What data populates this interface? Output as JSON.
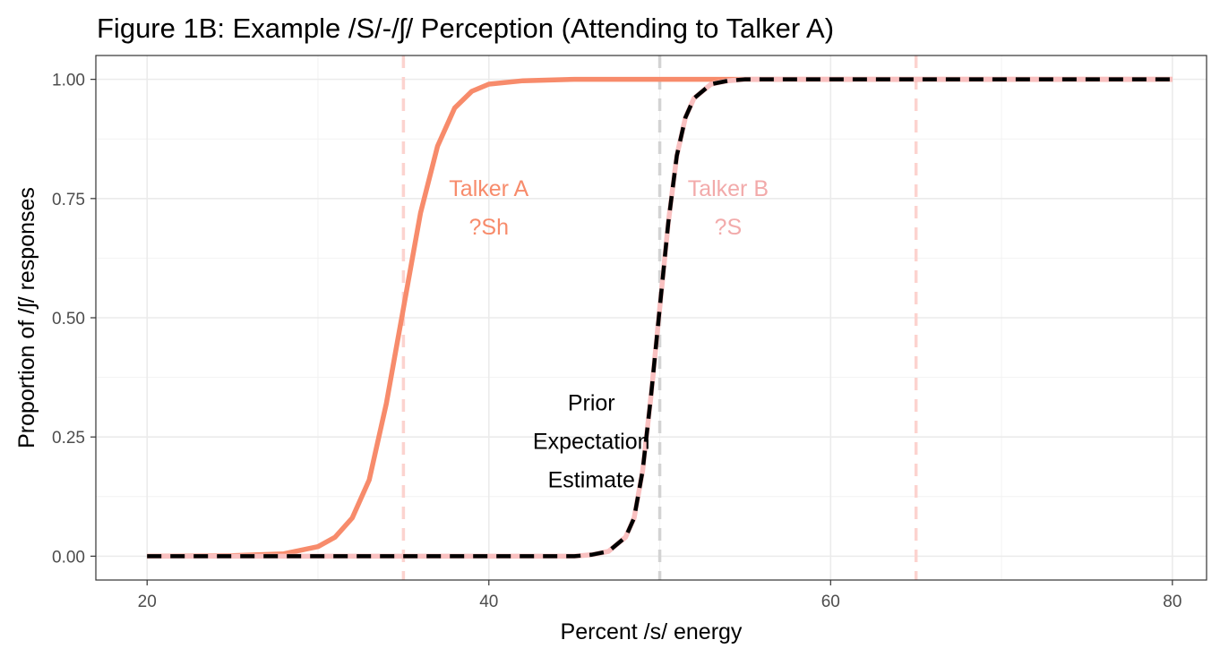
{
  "chart_data": {
    "type": "line",
    "title": "Figure 1B: Example /S/-/ʃ/ Perception (Attending to Talker A)",
    "xlabel": "Percent /s/ energy",
    "ylabel": "Proportion of /ʃ/ responses",
    "xlim": [
      17,
      82
    ],
    "ylim": [
      -0.05,
      1.05
    ],
    "x_ticks": [
      20,
      40,
      60,
      80
    ],
    "x_tick_labels": [
      "20",
      "40",
      "60",
      "80"
    ],
    "y_ticks": [
      0,
      0.25,
      0.5,
      0.75,
      1.0
    ],
    "y_tick_labels": [
      "0.00",
      "0.25",
      "0.50",
      "0.75",
      "1.00"
    ],
    "grid": true,
    "legend": "none",
    "series": [
      {
        "color": "#f78b6b",
        "style": "solid",
        "x": [
          20,
          25,
          28,
          30,
          31,
          32,
          33,
          34,
          34.5,
          35,
          35.5,
          36,
          37,
          38,
          39,
          40,
          42,
          45,
          50,
          55,
          60,
          65,
          70,
          75,
          80
        ],
        "y": [
          0.0,
          0.001,
          0.005,
          0.02,
          0.04,
          0.08,
          0.16,
          0.32,
          0.42,
          0.52,
          0.62,
          0.72,
          0.86,
          0.94,
          0.975,
          0.99,
          0.997,
          1.0,
          1.0,
          1.0,
          1.0,
          1.0,
          1.0,
          1.0,
          1.0
        ]
      },
      {
        "color": "#f9c0c0",
        "style": "solid",
        "x": [
          20,
          30,
          40,
          45,
          46,
          47,
          48,
          48.5,
          49,
          49.5,
          50,
          50.5,
          51,
          51.5,
          52,
          53,
          54,
          55,
          60,
          70,
          80
        ],
        "y": [
          0.0,
          0.0,
          0.0,
          0.0,
          0.003,
          0.01,
          0.04,
          0.08,
          0.18,
          0.34,
          0.52,
          0.7,
          0.84,
          0.92,
          0.96,
          0.99,
          0.997,
          1.0,
          1.0,
          1.0,
          1.0
        ]
      },
      {
        "color": "#000000",
        "style": "dashed",
        "x": [
          20,
          30,
          40,
          45,
          46,
          47,
          48,
          48.5,
          49,
          49.5,
          50,
          50.5,
          51,
          51.5,
          52,
          53,
          54,
          55,
          60,
          70,
          80
        ],
        "y": [
          0.0,
          0.0,
          0.0,
          0.0,
          0.003,
          0.01,
          0.04,
          0.08,
          0.18,
          0.34,
          0.52,
          0.7,
          0.84,
          0.92,
          0.96,
          0.99,
          0.997,
          1.0,
          1.0,
          1.0,
          1.0
        ]
      }
    ],
    "vlines": [
      {
        "x": 35,
        "color": "#fcd3cf"
      },
      {
        "x": 50,
        "color": "#d3d3d3"
      },
      {
        "x": 65,
        "color": "#fcd3cf"
      }
    ],
    "annotations": [
      {
        "lines": [
          "Talker A",
          "?Sh"
        ],
        "x": 40,
        "y": 0.73,
        "color": "#f78b6b"
      },
      {
        "lines": [
          "Talker B",
          "?S"
        ],
        "x": 54,
        "y": 0.73,
        "color": "#f2aaaa"
      },
      {
        "lines": [
          "Prior",
          "Expectation",
          "Estimate"
        ],
        "x": 46,
        "y": 0.24,
        "color": "#000000"
      }
    ]
  }
}
